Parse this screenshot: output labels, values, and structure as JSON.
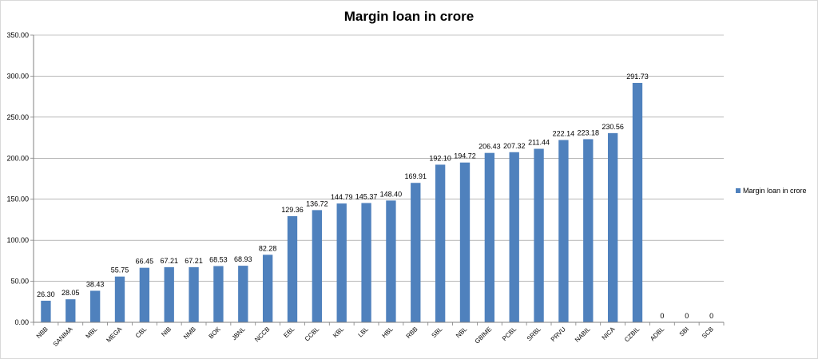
{
  "chart_data": {
    "type": "bar",
    "title": "Margin loan in crore",
    "categories": [
      "NBB",
      "SANIMA",
      "MBL",
      "MEGA",
      "CBL",
      "NIB",
      "NMB",
      "BOK",
      "JBNL",
      "NCCB",
      "EBL",
      "CCBL",
      "KBL",
      "LBL",
      "HBL",
      "RBB",
      "SBL",
      "NBL",
      "GBIME",
      "PCBL",
      "SRBL",
      "PRVU",
      "NABIL",
      "NICA",
      "CZBIL",
      "ADBL",
      "SBI",
      "SCB"
    ],
    "series": [
      {
        "name": "Margin loan in crore",
        "values": [
          26.3,
          28.05,
          38.43,
          55.75,
          66.45,
          67.21,
          67.21,
          68.53,
          68.93,
          82.28,
          129.36,
          136.72,
          144.79,
          145.37,
          148.4,
          169.91,
          192.1,
          194.72,
          206.43,
          207.32,
          211.44,
          222.14,
          223.18,
          230.56,
          291.73,
          0,
          0,
          0
        ],
        "labels": [
          "26.30",
          "28.05",
          "38.43",
          "55.75",
          "66.45",
          "67.21",
          "67.21",
          "68.53",
          "68.93",
          "82.28",
          "129.36",
          "136.72",
          "144.79",
          "145.37",
          "148.40",
          "169.91",
          "192.10",
          "194.72",
          "206.43",
          "207.32",
          "211.44",
          "222.14",
          "223.18",
          "230.56",
          "291.73",
          "0",
          "0",
          "0"
        ],
        "color": "#4f81bd"
      }
    ],
    "ylim": [
      0,
      350
    ],
    "yticks": [
      "0.00",
      "50.00",
      "100.00",
      "150.00",
      "200.00",
      "250.00",
      "300.00",
      "350.00"
    ],
    "grid": true,
    "legend_position": "right",
    "xlabel": "",
    "ylabel": ""
  },
  "colors": {
    "bar": "#4f81bd",
    "grid": "#8c8c8c",
    "axis": "#808080"
  }
}
